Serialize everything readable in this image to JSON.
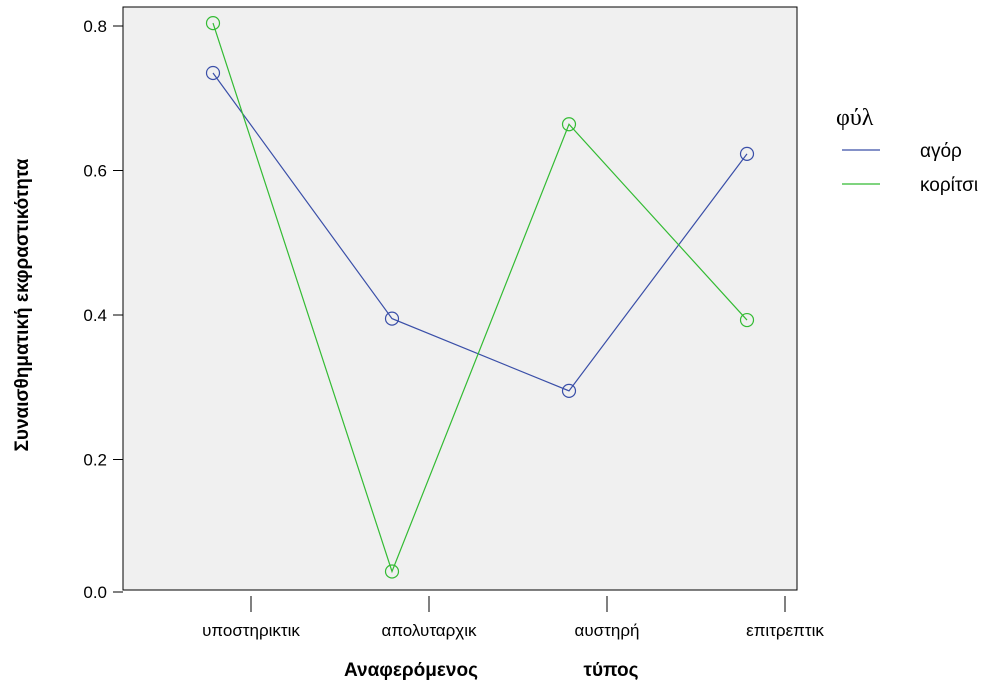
{
  "chart_data": {
    "type": "line",
    "xlabel_part1": "Αναφερόμενος",
    "xlabel_part2": "τύπος",
    "ylabel": "Συναισθηματική εκφραστικότητα",
    "categories": [
      "υποστηρικτικ",
      "απολυταρχικ",
      "αυστηρή",
      "επιτρεπτικ"
    ],
    "ylim": [
      0.0,
      0.8
    ],
    "yticks": [
      "0.0",
      "0.2",
      "0.4",
      "0.6",
      "0.8"
    ],
    "legend_title": "φύλ",
    "legend_position": "right",
    "background": "#f0f0f0",
    "series": [
      {
        "name": "αγόρ",
        "color": "#3a4fa8",
        "values": [
          0.735,
          0.395,
          0.295,
          0.623
        ]
      },
      {
        "name": "κορίτσι",
        "color": "#33bb33",
        "values": [
          0.804,
          0.045,
          0.664,
          0.393
        ]
      }
    ]
  }
}
